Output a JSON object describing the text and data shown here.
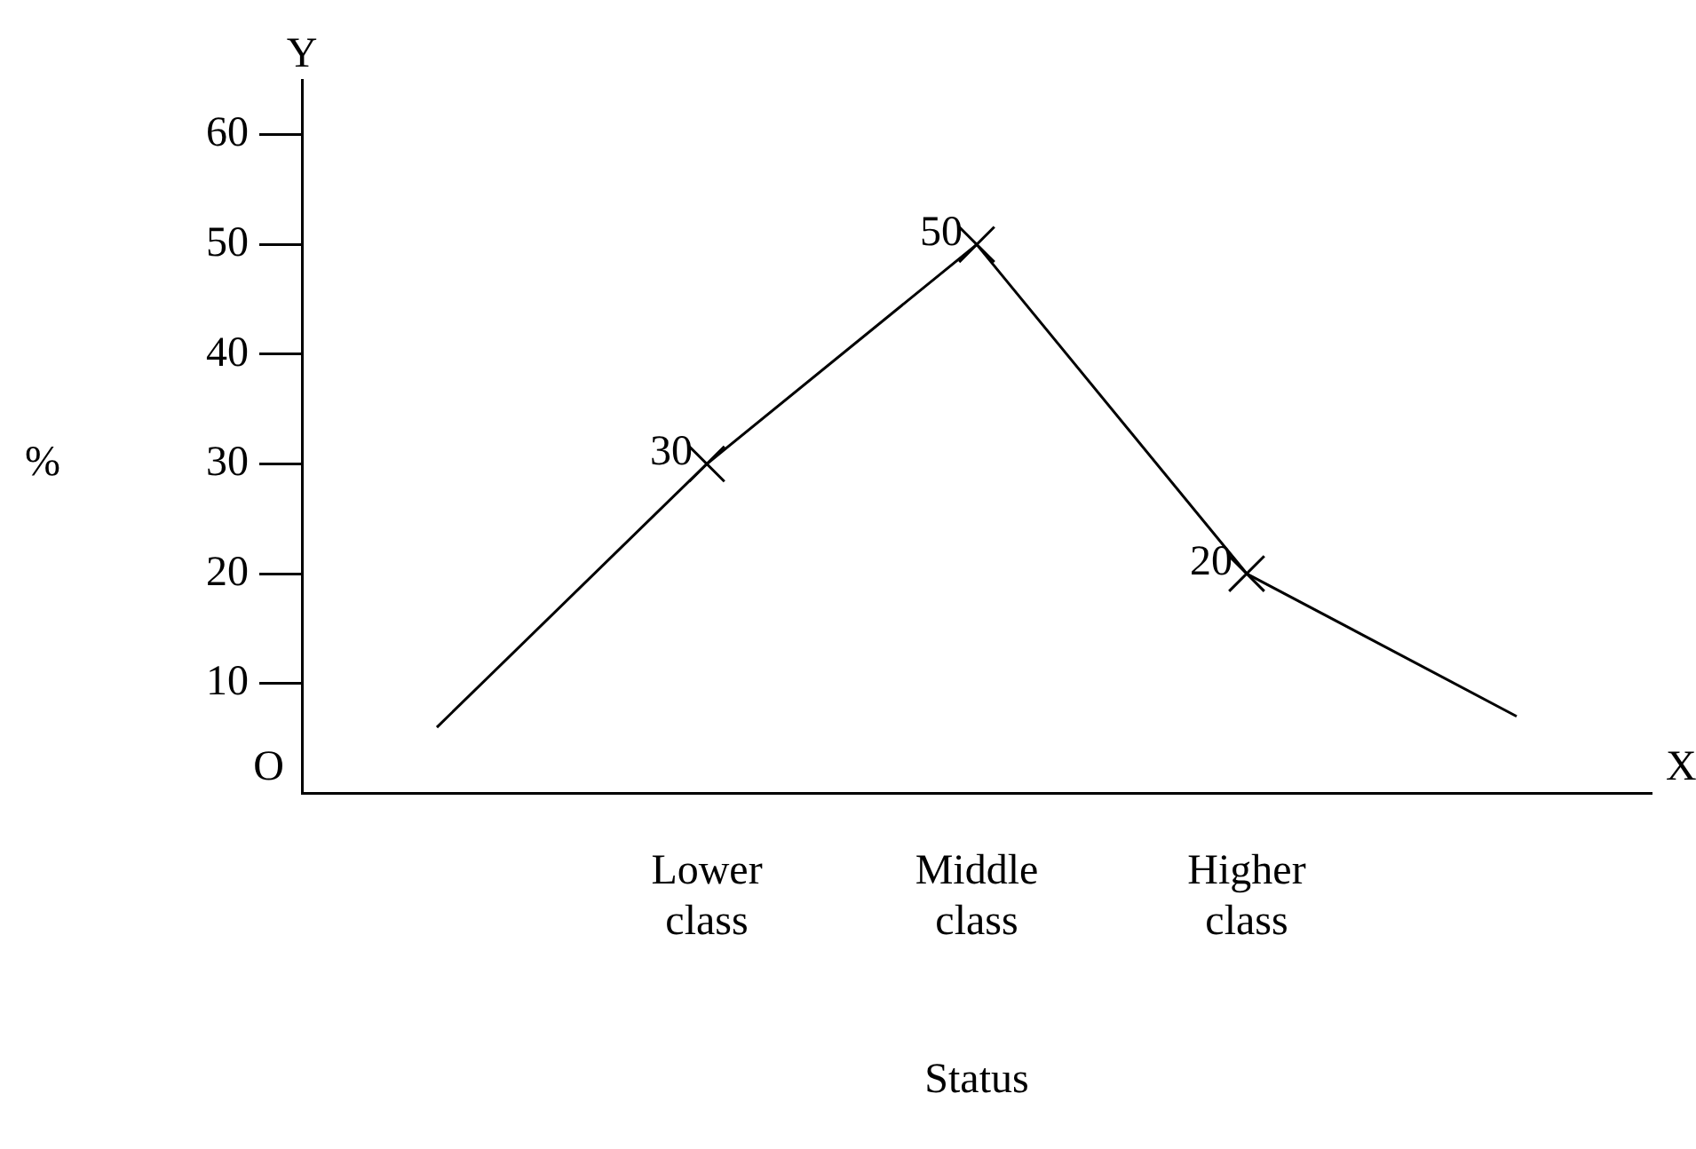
{
  "chart_data": {
    "type": "line",
    "xlabel": "Status",
    "ylabel": "%",
    "categories": [
      null,
      "Lower class",
      "Middle class",
      "Higher class",
      null
    ],
    "values": [
      6,
      30,
      50,
      20,
      7
    ],
    "value_labels": [
      null,
      "30",
      "50",
      "20",
      null
    ],
    "color": "#000000",
    "ylim": [
      0,
      65
    ],
    "yticks": [
      10,
      20,
      30,
      40,
      50,
      60
    ],
    "grid": false,
    "legend": false,
    "marker": "cross",
    "line_style": "solid",
    "annotations": [
      "Y",
      "X",
      "O"
    ]
  }
}
